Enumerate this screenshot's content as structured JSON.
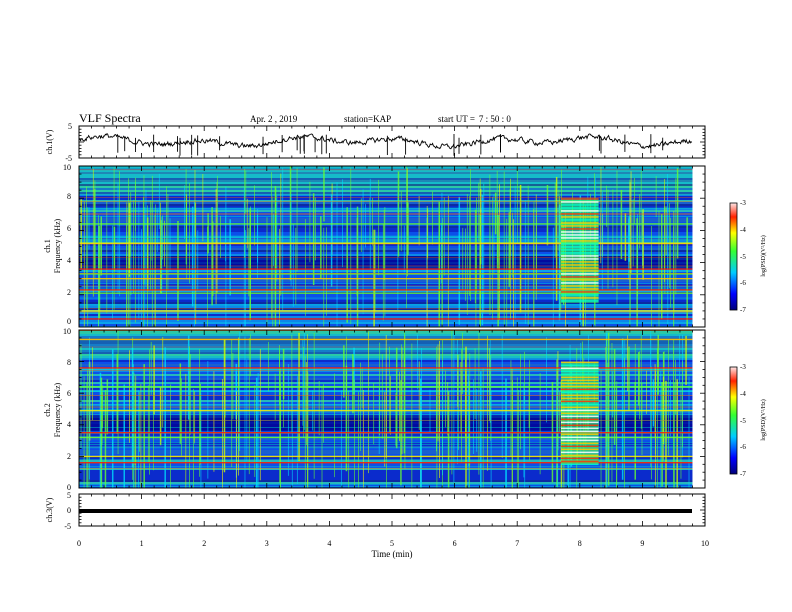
{
  "header": {
    "title": "VLF Spectra",
    "date": "Apr. 2 , 2019",
    "station_label": "station=",
    "station": "KAP",
    "start_label": "start UT =",
    "start_time": "7 : 50 : 0"
  },
  "chart_data": [
    {
      "type": "line",
      "ylabel": "ch.1(V)",
      "ylim": [
        -5,
        5
      ],
      "yticks": [
        "5",
        "-5"
      ],
      "xlim": [
        0,
        10
      ],
      "description_free": true
    },
    {
      "type": "heatmap",
      "ylabel_top": "ch.1",
      "ylabel": "Frequency (kHz)",
      "ylim": [
        0,
        10
      ],
      "yticks": [
        "0",
        "2",
        "4",
        "6",
        "8",
        "10"
      ],
      "xlim": [
        0,
        10
      ],
      "strong_lines_khz": [
        0.5,
        1.0,
        2.1,
        2.3,
        3.0,
        3.3,
        3.6,
        5.2,
        6.4
      ],
      "burst_minutes": [
        7.7,
        8.3
      ],
      "colorbar": {
        "label": "log(PSD)(V²/Hz)",
        "range": [
          -7,
          -3
        ],
        "ticks": [
          "-3",
          "-4",
          "-5",
          "-6",
          "-7"
        ]
      }
    },
    {
      "type": "heatmap",
      "ylabel_top": "ch.2",
      "ylabel": "Frequency (kHz)",
      "ylim": [
        0,
        10
      ],
      "yticks": [
        "0",
        "2",
        "4",
        "6",
        "8",
        "10"
      ],
      "xlim": [
        0,
        10
      ],
      "strong_lines_khz": [
        1.6,
        2.0,
        3.2,
        3.5,
        4.9,
        6.4,
        7.6,
        9.4
      ],
      "burst_minutes": [
        7.7,
        8.3
      ],
      "colorbar": {
        "label": "log(PSD)(V²/Hz)",
        "range": [
          -7,
          -3
        ],
        "ticks": [
          "-3",
          "-4",
          "-5",
          "-6",
          "-7"
        ]
      }
    },
    {
      "type": "line",
      "ylabel": "ch.3(V)",
      "ylim": [
        -5,
        5
      ],
      "yticks": [
        "5",
        "0",
        "-5"
      ],
      "x": [
        0,
        9.8
      ],
      "y": [
        0,
        0
      ],
      "xlabel": "Time (min)",
      "xlim": [
        0,
        10
      ],
      "xticks": [
        "0",
        "1",
        "2",
        "3",
        "4",
        "5",
        "6",
        "7",
        "8",
        "9",
        "10"
      ]
    }
  ],
  "colors": {
    "axes": "#000000",
    "trace": "#000000",
    "spectrogram_bg": "#1e6cd8"
  }
}
